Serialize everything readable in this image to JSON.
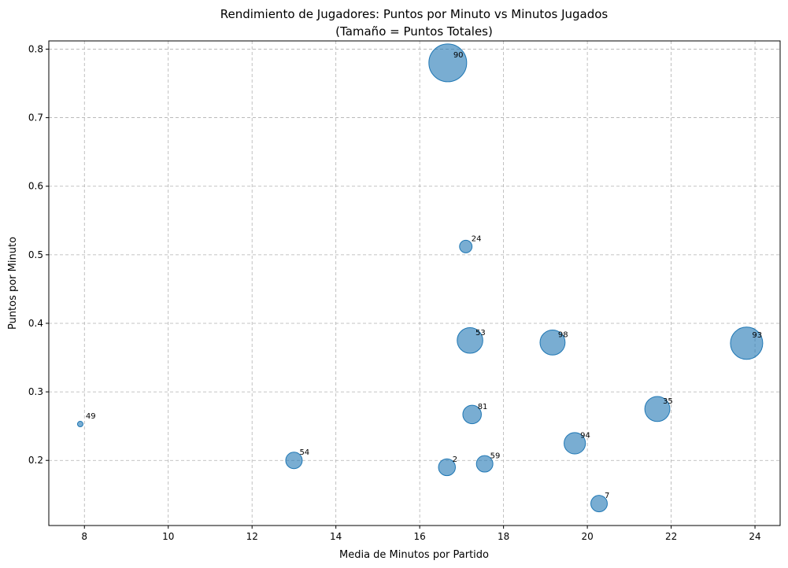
{
  "chart_data": {
    "type": "scatter",
    "title": "Rendimiento de Jugadores: Puntos por Minuto vs Minutos Jugados",
    "subtitle": "(Tamaño = Puntos Totales)",
    "xlabel": "Media de Minutos por Partido",
    "ylabel": "Puntos por Minuto",
    "xlim": [
      7.15,
      24.6
    ],
    "ylim": [
      0.105,
      0.812
    ],
    "xticks": [
      8,
      10,
      12,
      14,
      16,
      18,
      20,
      22,
      24
    ],
    "yticks": [
      0.2,
      0.3,
      0.4,
      0.5,
      0.6,
      0.7,
      0.8
    ],
    "grid": true,
    "size_encoding": "Puntos Totales",
    "color": "#1f77b4",
    "points": [
      {
        "label": "90",
        "x": 16.67,
        "y": 0.78,
        "size_rel": 1.0
      },
      {
        "label": "24",
        "x": 17.1,
        "y": 0.512,
        "size_rel": 0.11
      },
      {
        "label": "53",
        "x": 17.2,
        "y": 0.375,
        "size_rel": 0.46
      },
      {
        "label": "98",
        "x": 19.17,
        "y": 0.372,
        "size_rel": 0.44
      },
      {
        "label": "93",
        "x": 23.8,
        "y": 0.371,
        "size_rel": 0.73
      },
      {
        "label": "35",
        "x": 21.67,
        "y": 0.275,
        "size_rel": 0.44
      },
      {
        "label": "81",
        "x": 17.25,
        "y": 0.267,
        "size_rel": 0.24
      },
      {
        "label": "49",
        "x": 7.9,
        "y": 0.253,
        "size_rel": 0.02
      },
      {
        "label": "94",
        "x": 19.7,
        "y": 0.225,
        "size_rel": 0.32
      },
      {
        "label": "54",
        "x": 13.0,
        "y": 0.2,
        "size_rel": 0.19
      },
      {
        "label": "2",
        "x": 16.65,
        "y": 0.19,
        "size_rel": 0.2
      },
      {
        "label": "59",
        "x": 17.55,
        "y": 0.195,
        "size_rel": 0.19
      },
      {
        "label": "7",
        "x": 20.28,
        "y": 0.137,
        "size_rel": 0.19
      }
    ]
  }
}
